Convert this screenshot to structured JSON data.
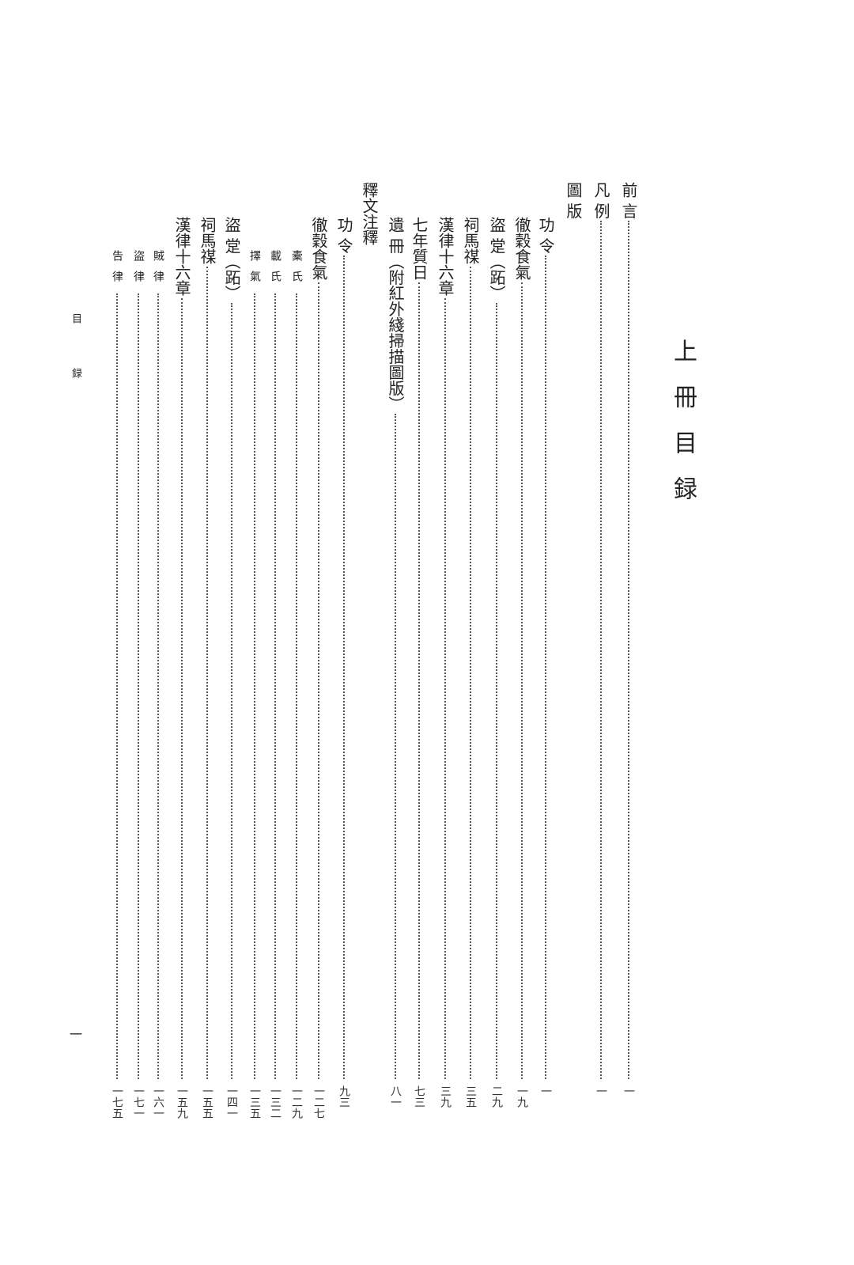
{
  "title": "上冊目録",
  "running_head": "目 録",
  "folio": "一",
  "entries": [
    {
      "label": "前 言",
      "page": "一",
      "level": 1,
      "dots": true
    },
    {
      "label": "凡 例",
      "page": "一",
      "level": 1,
      "dots": true
    },
    {
      "label": "圖 版",
      "page": "",
      "level": 1,
      "dots": false
    },
    {
      "label": "功 令",
      "page": "一",
      "level": 2,
      "dots": true
    },
    {
      "label": "徹穀食氣",
      "page": "一九",
      "level": 2,
      "dots": true
    },
    {
      "label": "盜 䟫（跖）",
      "page": "二九",
      "level": 2,
      "dots": true
    },
    {
      "label": "祠馬禖",
      "page": "三五",
      "level": 2,
      "dots": true
    },
    {
      "label": "漢律十六章",
      "page": "三九",
      "level": 2,
      "dots": true
    },
    {
      "label": "七年質日",
      "page": "七三",
      "level": 2,
      "dots": true
    },
    {
      "label": "遺 冊（附紅外綫掃描圖版）",
      "page": "八一",
      "level": 2,
      "dots": true
    },
    {
      "label": "釋文注釋",
      "page": "",
      "level": 1,
      "dots": false
    },
    {
      "label": "功 令",
      "page": "九三",
      "level": 2,
      "dots": true
    },
    {
      "label": "徹穀食氣",
      "page": "一二七",
      "level": 2,
      "dots": true
    },
    {
      "label": "橐氏",
      "page": "一二九",
      "level": 3,
      "dots": true
    },
    {
      "label": "載氏",
      "page": "一三二",
      "level": 3,
      "dots": true
    },
    {
      "label": "擇氣",
      "page": "一三五",
      "level": 3,
      "dots": true
    },
    {
      "label": "盜 䟫（跖）",
      "page": "一四一",
      "level": 2,
      "dots": true
    },
    {
      "label": "祠馬禖",
      "page": "一五五",
      "level": 2,
      "dots": true
    },
    {
      "label": "漢律十六章",
      "page": "一五九",
      "level": 2,
      "dots": true
    },
    {
      "label": "賊律",
      "page": "一六一",
      "level": 3,
      "dots": true
    },
    {
      "label": "盜律",
      "page": "一七一",
      "level": 3,
      "dots": true
    },
    {
      "label": "告律",
      "page": "一七五",
      "level": 3,
      "dots": true
    }
  ]
}
